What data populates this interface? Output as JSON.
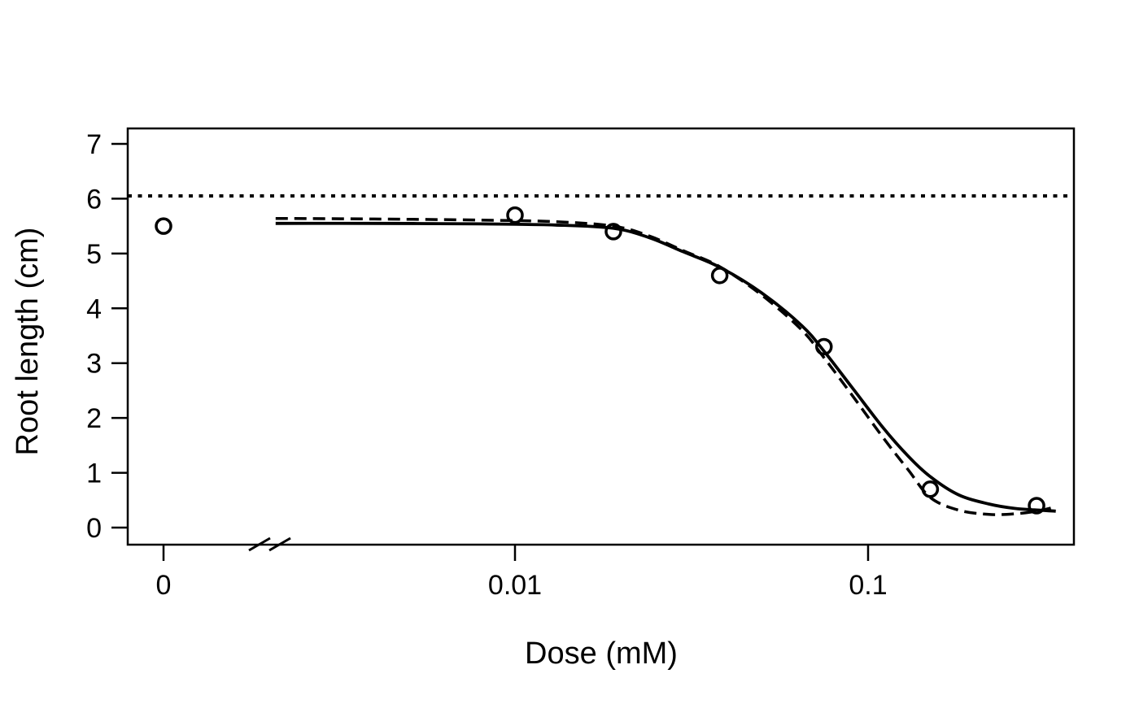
{
  "page": {
    "background_color": "#ffffff",
    "foreground_color": "#000000"
  },
  "chart_data": {
    "type": "scatter",
    "title": "",
    "xlabel": "Dose (mM)",
    "ylabel": "Root length (cm)",
    "x_scale": "log10",
    "x_axis_break": true,
    "x_tick_labels": [
      "0",
      "0.01",
      "0.1"
    ],
    "x_tick_doses": [
      0,
      0.01,
      0.1
    ],
    "y_tick_labels": [
      "0",
      "1",
      "2",
      "3",
      "4",
      "5",
      "6",
      "7"
    ],
    "y_ticks": [
      0,
      1,
      2,
      3,
      4,
      5,
      6,
      7
    ],
    "ylim": [
      0,
      7.3
    ],
    "xlim_positive_doses": [
      0.0021,
      0.36
    ],
    "grid": false,
    "legend": "none",
    "points": {
      "marker": "open-circle",
      "doses_mM": [
        0,
        0.01,
        0.019,
        0.038,
        0.075,
        0.15,
        0.3
      ],
      "root_length_cm": [
        5.5,
        5.7,
        5.4,
        4.6,
        3.3,
        0.7,
        0.4
      ]
    },
    "reference_line": {
      "style": "dotted",
      "orientation": "horizontal",
      "value": 6.05
    },
    "curves": [
      {
        "name": "solid-fit",
        "dash": "solid",
        "anchors": [
          [
            0.0021,
            5.55
          ],
          [
            0.004,
            5.55
          ],
          [
            0.008,
            5.54
          ],
          [
            0.013,
            5.52
          ],
          [
            0.019,
            5.46
          ],
          [
            0.024,
            5.29
          ],
          [
            0.03,
            5.03
          ],
          [
            0.038,
            4.75
          ],
          [
            0.05,
            4.28
          ],
          [
            0.065,
            3.68
          ],
          [
            0.075,
            3.22
          ],
          [
            0.09,
            2.56
          ],
          [
            0.11,
            1.83
          ],
          [
            0.13,
            1.3
          ],
          [
            0.15,
            0.93
          ],
          [
            0.18,
            0.6
          ],
          [
            0.22,
            0.43
          ],
          [
            0.26,
            0.35
          ],
          [
            0.3,
            0.32
          ],
          [
            0.34,
            0.3
          ]
        ]
      },
      {
        "name": "dashed-fit",
        "dash": "dashed",
        "anchors": [
          [
            0.0021,
            5.64
          ],
          [
            0.004,
            5.63
          ],
          [
            0.008,
            5.61
          ],
          [
            0.013,
            5.58
          ],
          [
            0.019,
            5.5
          ],
          [
            0.024,
            5.32
          ],
          [
            0.03,
            5.05
          ],
          [
            0.038,
            4.76
          ],
          [
            0.05,
            4.24
          ],
          [
            0.065,
            3.6
          ],
          [
            0.075,
            3.1
          ],
          [
            0.09,
            2.42
          ],
          [
            0.11,
            1.65
          ],
          [
            0.13,
            1.05
          ],
          [
            0.15,
            0.55
          ],
          [
            0.18,
            0.32
          ],
          [
            0.22,
            0.24
          ],
          [
            0.26,
            0.25
          ],
          [
            0.3,
            0.3
          ],
          [
            0.34,
            0.38
          ]
        ]
      }
    ],
    "colors": {
      "points": "#000000",
      "curves": "#000000",
      "reference_line": "#000000",
      "axis": "#000000"
    }
  }
}
